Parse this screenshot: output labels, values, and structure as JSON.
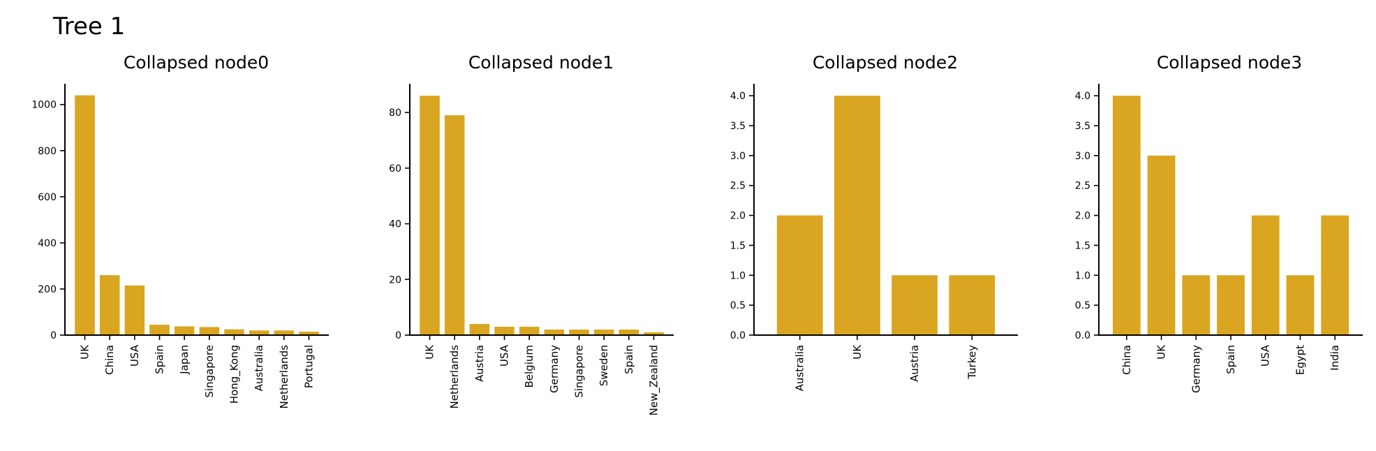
{
  "figure": {
    "title": "Tree 1"
  },
  "colors": {
    "bar": "#DAA520",
    "axis": "#000000"
  },
  "chart_data": [
    {
      "type": "bar",
      "title": "Collapsed node0",
      "categories": [
        "UK",
        "China",
        "USA",
        "Spain",
        "Japan",
        "Singapore",
        "Hong_Kong",
        "Australia",
        "Netherlands",
        "Portugal"
      ],
      "values": [
        1040,
        260,
        215,
        45,
        38,
        35,
        25,
        20,
        20,
        15
      ],
      "ylim": [
        0,
        1090
      ],
      "yticks": [
        0,
        200,
        400,
        600,
        800,
        1000
      ],
      "ytick_labels": [
        "0",
        "200",
        "400",
        "600",
        "800",
        "1000"
      ],
      "xlabel": "",
      "ylabel": ""
    },
    {
      "type": "bar",
      "title": "Collapsed node1",
      "categories": [
        "UK",
        "Netherlands",
        "Austria",
        "USA",
        "Belgium",
        "Germany",
        "Singapore",
        "Sweden",
        "Spain",
        "New_Zealand"
      ],
      "values": [
        86,
        79,
        4,
        3,
        3,
        2,
        2,
        2,
        2,
        1
      ],
      "ylim": [
        0,
        90.3
      ],
      "yticks": [
        0,
        20,
        40,
        60,
        80
      ],
      "ytick_labels": [
        "0",
        "20",
        "40",
        "60",
        "80"
      ],
      "xlabel": "",
      "ylabel": ""
    },
    {
      "type": "bar",
      "title": "Collapsed node2",
      "categories": [
        "Australia",
        "UK",
        "Austria",
        "Turkey"
      ],
      "values": [
        2,
        4,
        1,
        1
      ],
      "ylim": [
        0,
        4.2
      ],
      "yticks": [
        0,
        0.5,
        1,
        1.5,
        2,
        2.5,
        3,
        3.5,
        4
      ],
      "ytick_labels": [
        "0.0",
        "0.5",
        "1.0",
        "1.5",
        "2.0",
        "2.5",
        "3.0",
        "3.5",
        "4.0"
      ],
      "xlabel": "",
      "ylabel": ""
    },
    {
      "type": "bar",
      "title": "Collapsed node3",
      "categories": [
        "China",
        "UK",
        "Germany",
        "Spain",
        "USA",
        "Egypt",
        "India"
      ],
      "values": [
        4,
        3,
        1,
        1,
        2,
        1,
        2
      ],
      "ylim": [
        0,
        4.2
      ],
      "yticks": [
        0,
        0.5,
        1,
        1.5,
        2,
        2.5,
        3,
        3.5,
        4
      ],
      "ytick_labels": [
        "0.0",
        "0.5",
        "1.0",
        "1.5",
        "2.0",
        "2.5",
        "3.0",
        "3.5",
        "4.0"
      ],
      "xlabel": "",
      "ylabel": ""
    }
  ]
}
